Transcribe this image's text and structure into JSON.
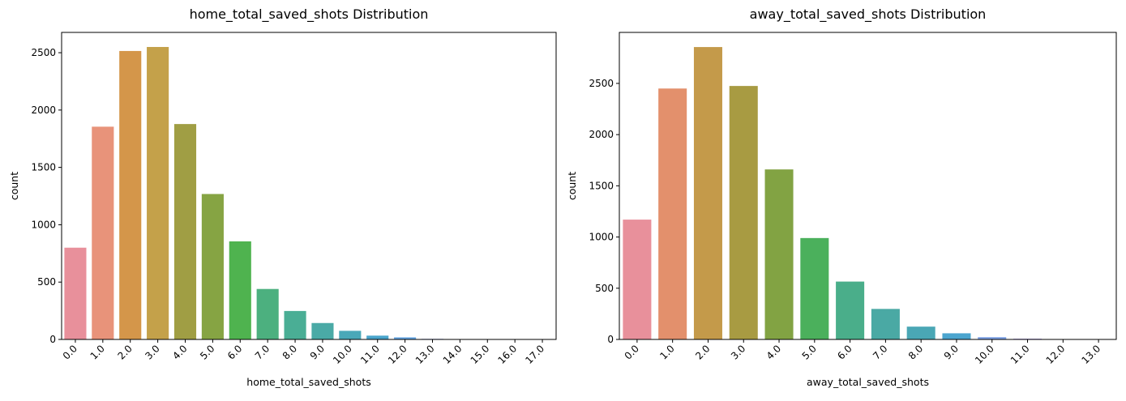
{
  "chart_data": [
    {
      "type": "bar",
      "title": "home_total_saved_shots Distribution",
      "xlabel": "home_total_saved_shots",
      "ylabel": "count",
      "categories": [
        "0.0",
        "1.0",
        "2.0",
        "3.0",
        "4.0",
        "5.0",
        "6.0",
        "7.0",
        "8.0",
        "9.0",
        "10.0",
        "11.0",
        "12.0",
        "13.0",
        "14.0",
        "15.0",
        "16.0",
        "17.0"
      ],
      "values": [
        800,
        1855,
        2515,
        2550,
        1878,
        1268,
        855,
        440,
        248,
        143,
        75,
        33,
        18,
        5,
        3,
        2,
        1,
        1
      ],
      "colors": [
        "#e8909b",
        "#e8937a",
        "#d4964a",
        "#c4a14a",
        "#a09e44",
        "#86a443",
        "#4fb34f",
        "#4cb07f",
        "#4aae95",
        "#4aaaa6",
        "#4aa8b8",
        "#4aa5cc",
        "#62a3e0",
        "#8e9ee8",
        "#b596e8",
        "#d38be5",
        "#e587d3",
        "#e68dbf"
      ],
      "ylim": [
        0,
        2677
      ],
      "yticks": [
        0,
        500,
        1000,
        1500,
        2000,
        2500
      ],
      "grid": false
    },
    {
      "type": "bar",
      "title": "away_total_saved_shots Distribution",
      "xlabel": "away_total_saved_shots",
      "ylabel": "count",
      "categories": [
        "0.0",
        "1.0",
        "2.0",
        "3.0",
        "4.0",
        "5.0",
        "6.0",
        "7.0",
        "8.0",
        "9.0",
        "10.0",
        "11.0",
        "12.0",
        "13.0"
      ],
      "values": [
        1170,
        2450,
        2855,
        2475,
        1660,
        990,
        565,
        298,
        125,
        60,
        22,
        7,
        3,
        1
      ],
      "colors": [
        "#e8909b",
        "#e3906c",
        "#c49a4a",
        "#a89b42",
        "#82a343",
        "#4bb05c",
        "#4aae8a",
        "#4aa9a4",
        "#4aa7b5",
        "#4ba5cf",
        "#7ba0e3",
        "#a897e8",
        "#d28ee3",
        "#e58dc5"
      ],
      "ylim": [
        0,
        2998
      ],
      "yticks": [
        0,
        500,
        1000,
        1500,
        2000,
        2500
      ],
      "grid": false
    }
  ]
}
